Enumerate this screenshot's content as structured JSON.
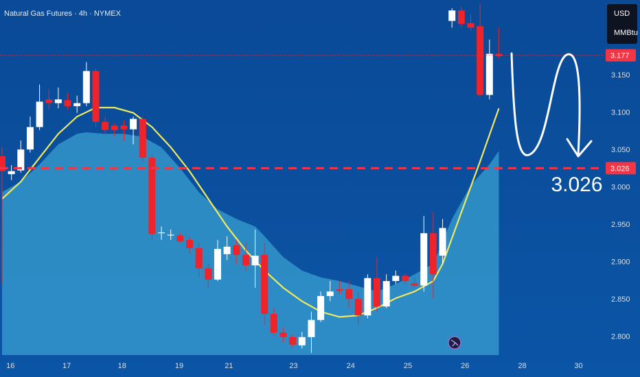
{
  "chart_data": {
    "type": "candlestick",
    "title": "Natural Gas Futures · 4h · NYMEX",
    "currency": "USD",
    "unit": "MMBtu",
    "up_color": "#ffffff",
    "down_color": "#f0232b",
    "grid": false,
    "x": [
      0,
      1,
      2,
      3,
      4,
      5,
      6,
      7,
      8,
      9,
      10,
      11,
      12,
      13,
      14,
      15,
      16,
      17,
      18,
      19,
      20,
      21,
      22,
      23,
      24,
      25,
      26,
      27,
      28,
      29,
      30,
      31,
      32,
      33,
      34,
      35,
      36,
      37,
      38,
      39,
      40,
      41,
      42,
      43,
      44,
      45,
      46,
      47,
      48,
      49,
      50,
      51,
      52,
      53
    ],
    "open": [
      3.042,
      3.018,
      3.023,
      3.051,
      3.081,
      3.118,
      3.113,
      3.117,
      3.109,
      3.113,
      3.156,
      3.088,
      3.083,
      3.083,
      3.078,
      3.092,
      3.04,
      2.939,
      2.936,
      2.936,
      2.93,
      2.919,
      2.892,
      2.877,
      2.911,
      2.923,
      2.91,
      2.896,
      2.91,
      2.831,
      2.806,
      2.8,
      2.789,
      2.8,
      2.823,
      2.855,
      2.864,
      2.864,
      2.851,
      2.829,
      2.879,
      2.841,
      2.875,
      2.882,
      2.872,
      2.869,
      2.939,
      2.909,
      3.223,
      3.237,
      3.22,
      3.216,
      3.124,
      3.179
    ],
    "high": [
      3.054,
      3.03,
      3.063,
      3.095,
      3.138,
      3.132,
      3.134,
      3.127,
      3.123,
      3.168,
      3.159,
      3.095,
      3.086,
      3.09,
      3.095,
      3.095,
      3.045,
      2.948,
      2.944,
      2.939,
      2.935,
      2.926,
      2.898,
      2.93,
      2.935,
      2.93,
      2.926,
      2.944,
      2.926,
      2.839,
      2.813,
      2.804,
      2.807,
      2.834,
      2.861,
      2.875,
      2.875,
      2.875,
      2.861,
      2.884,
      2.907,
      2.884,
      2.889,
      2.885,
      2.88,
      2.962,
      2.967,
      2.958,
      3.24,
      3.242,
      3.232,
      3.246,
      3.198,
      3.214
    ],
    "low": [
      2.871,
      3.01,
      3.02,
      3.047,
      3.077,
      3.104,
      3.106,
      3.104,
      3.1,
      3.109,
      3.081,
      3.072,
      3.068,
      3.063,
      3.058,
      3.035,
      2.93,
      2.93,
      2.93,
      2.926,
      2.912,
      2.88,
      2.866,
      2.875,
      2.903,
      2.898,
      2.889,
      2.866,
      2.816,
      2.802,
      2.793,
      2.785,
      2.785,
      2.779,
      2.82,
      2.848,
      2.857,
      2.839,
      2.816,
      2.825,
      2.834,
      2.839,
      2.871,
      2.871,
      2.866,
      2.861,
      2.852,
      2.898,
      3.214,
      3.214,
      3.21,
      3.122,
      3.118,
      3.173
    ],
    "close": [
      3.022,
      3.022,
      3.051,
      3.081,
      3.115,
      3.113,
      3.118,
      3.109,
      3.113,
      3.156,
      3.088,
      3.077,
      3.077,
      3.078,
      3.092,
      3.04,
      2.938,
      2.94,
      2.937,
      2.928,
      2.919,
      2.892,
      2.877,
      2.918,
      2.921,
      2.91,
      2.896,
      2.909,
      2.831,
      2.806,
      2.8,
      2.79,
      2.8,
      2.823,
      2.855,
      2.861,
      2.862,
      2.851,
      2.829,
      2.879,
      2.841,
      2.875,
      2.882,
      2.875,
      2.869,
      2.939,
      2.884,
      2.946,
      3.237,
      3.219,
      3.214,
      3.124,
      3.179,
      3.176
    ],
    "overlays": [
      {
        "type": "area",
        "color": "#3a9fd0",
        "x": [
          0,
          2,
          4,
          6,
          8,
          9,
          11,
          13,
          15,
          17,
          19,
          21,
          23,
          25,
          27,
          28,
          30,
          32,
          34,
          36,
          38,
          40,
          42,
          44,
          46,
          48,
          50,
          52,
          53
        ],
        "values": [
          2.994,
          3.008,
          3.031,
          3.058,
          3.072,
          3.074,
          3.072,
          3.072,
          3.068,
          3.054,
          3.026,
          2.994,
          2.971,
          2.958,
          2.948,
          2.935,
          2.907,
          2.889,
          2.88,
          2.875,
          2.868,
          2.861,
          2.871,
          2.884,
          2.898,
          2.958,
          3.003,
          3.031,
          3.049
        ]
      },
      {
        "type": "line",
        "color": "#f2ea5c",
        "x": [
          0,
          2,
          4,
          6,
          8,
          10,
          12,
          14,
          16,
          18,
          20,
          22,
          24,
          26,
          28,
          30,
          32,
          34,
          36,
          38,
          40,
          42,
          44,
          46,
          47,
          49,
          51,
          53
        ],
        "values": [
          2.985,
          3.008,
          3.04,
          3.072,
          3.095,
          3.107,
          3.107,
          3.1,
          3.081,
          3.054,
          3.022,
          2.985,
          2.948,
          2.916,
          2.889,
          2.866,
          2.848,
          2.834,
          2.827,
          2.829,
          2.839,
          2.852,
          2.861,
          2.875,
          2.898,
          2.967,
          3.035,
          3.106
        ]
      }
    ],
    "price_lines": [
      {
        "value": 3.177,
        "color": "#f23645",
        "style": "dotted"
      },
      {
        "value": 3.026,
        "color": "#f23645",
        "style": "dashed"
      }
    ],
    "annotation": "3.026",
    "xlim": [
      -0.22,
      64.25
    ],
    "ylim": [
      2.776,
      3.251
    ],
    "xticks": [
      {
        "value": 0.9,
        "label": "16"
      },
      {
        "value": 6.9,
        "label": "17"
      },
      {
        "value": 12.8,
        "label": "18"
      },
      {
        "value": 18.9,
        "label": "19"
      },
      {
        "value": 24.2,
        "label": "21"
      },
      {
        "value": 31.1,
        "label": "23"
      },
      {
        "value": 37.2,
        "label": "24"
      },
      {
        "value": 43.3,
        "label": "25"
      },
      {
        "value": 49.4,
        "label": "26"
      },
      {
        "value": 55.5,
        "label": "28"
      },
      {
        "value": 61.5,
        "label": "30"
      }
    ],
    "yticks": [
      {
        "value": 2.8,
        "label": "2.800"
      },
      {
        "value": 2.85,
        "label": "2.850"
      },
      {
        "value": 2.9,
        "label": "2.900"
      },
      {
        "value": 2.95,
        "label": "2.950"
      },
      {
        "value": 3,
        "label": "3.000"
      },
      {
        "value": 3.05,
        "label": "3.050"
      },
      {
        "value": 3.1,
        "label": "3.100"
      },
      {
        "value": 3.15,
        "label": "3.150"
      }
    ]
  }
}
